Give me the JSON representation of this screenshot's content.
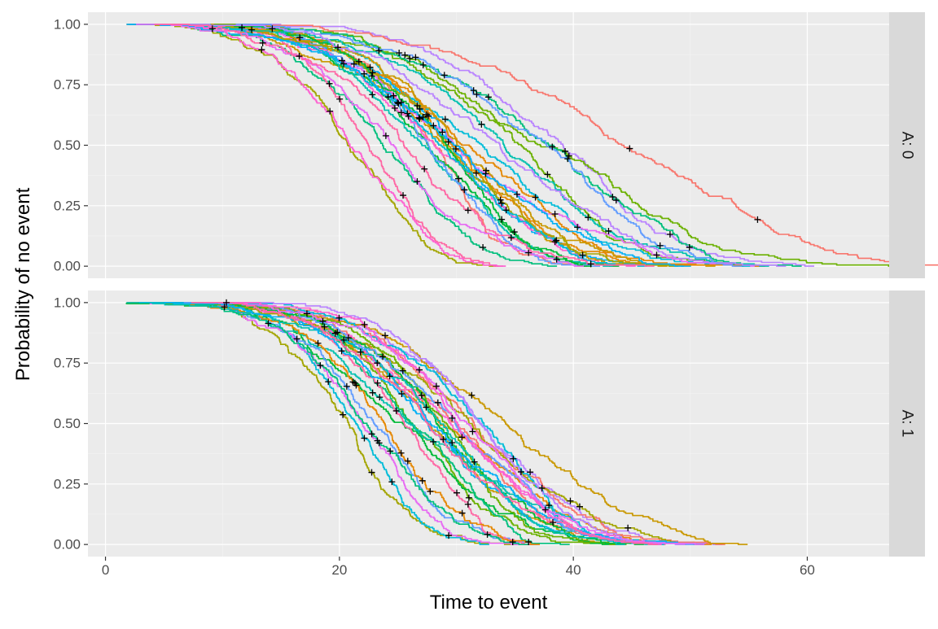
{
  "chart_data": {
    "type": "line",
    "subtype": "step (Kaplan-Meier survival curves, faceted)",
    "xlabel": "Time to event",
    "ylabel": "Probability of no event",
    "xlim": [
      -1.5,
      67
    ],
    "ylim": [
      -0.05,
      1.05
    ],
    "x_ticks": [
      0,
      20,
      40,
      60
    ],
    "y_ticks": [
      0,
      0.25,
      0.5,
      0.75,
      1
    ],
    "x_tick_labels": [
      "0",
      "20",
      "40",
      "60"
    ],
    "y_tick_labels": [
      "0.00",
      "0.25",
      "0.50",
      "0.75",
      "1.00"
    ],
    "grid": true,
    "legend": "none",
    "censor_marker": "+",
    "palette": [
      "#F8766D",
      "#E58700",
      "#C99800",
      "#A3A500",
      "#6BB100",
      "#00BA38",
      "#00BF7D",
      "#00C0AF",
      "#00BCD8",
      "#00B0F6",
      "#619CFF",
      "#B983FF",
      "#E76BF3",
      "#FD61D1",
      "#FF67A4"
    ],
    "panels": [
      {
        "strip_label": "A: 0",
        "representative_series": [
          {
            "x": [
              3,
              10,
              15,
              18,
              20,
              22,
              24,
              26,
              28,
              30,
              33,
              36,
              40,
              45,
              50,
              55,
              61
            ],
            "y": [
              1.0,
              0.99,
              0.96,
              0.9,
              0.82,
              0.72,
              0.62,
              0.52,
              0.44,
              0.36,
              0.27,
              0.2,
              0.12,
              0.06,
              0.03,
              0.02,
              0.01
            ]
          },
          {
            "x": [
              3,
              10,
              14,
              17,
              19,
              21,
              23,
              25,
              27,
              30,
              34,
              38,
              42,
              47
            ],
            "y": [
              1.0,
              0.99,
              0.94,
              0.84,
              0.72,
              0.58,
              0.44,
              0.32,
              0.22,
              0.13,
              0.07,
              0.04,
              0.02,
              0.01
            ]
          },
          {
            "x": [
              5,
              12,
              17,
              21,
              24,
              28,
              32,
              36,
              40,
              45,
              50,
              55,
              60,
              63.5
            ],
            "y": [
              1.0,
              0.99,
              0.96,
              0.9,
              0.83,
              0.72,
              0.6,
              0.47,
              0.36,
              0.25,
              0.15,
              0.08,
              0.03,
              0.01
            ]
          }
        ]
      },
      {
        "strip_label": "A: 1",
        "representative_series": [
          {
            "x": [
              2,
              8,
              13,
              17,
              20,
              22,
              24,
              26,
              28,
              30,
              32,
              35,
              38,
              42,
              46
            ],
            "y": [
              1.0,
              0.99,
              0.95,
              0.87,
              0.76,
              0.66,
              0.56,
              0.46,
              0.37,
              0.28,
              0.2,
              0.12,
              0.06,
              0.02,
              0.01
            ]
          },
          {
            "x": [
              4,
              10,
              15,
              18,
              20,
              22,
              24,
              26,
              29,
              32,
              36
            ],
            "y": [
              1.0,
              0.98,
              0.9,
              0.78,
              0.64,
              0.5,
              0.36,
              0.24,
              0.13,
              0.06,
              0.02
            ]
          },
          {
            "x": [
              6,
              14,
              19,
              23,
              27,
              31,
              35,
              40,
              45,
              50,
              55,
              57.5
            ],
            "y": [
              1.0,
              0.99,
              0.92,
              0.8,
              0.64,
              0.46,
              0.3,
              0.15,
              0.06,
              0.03,
              0.01,
              0.01
            ]
          }
        ]
      }
    ]
  }
}
